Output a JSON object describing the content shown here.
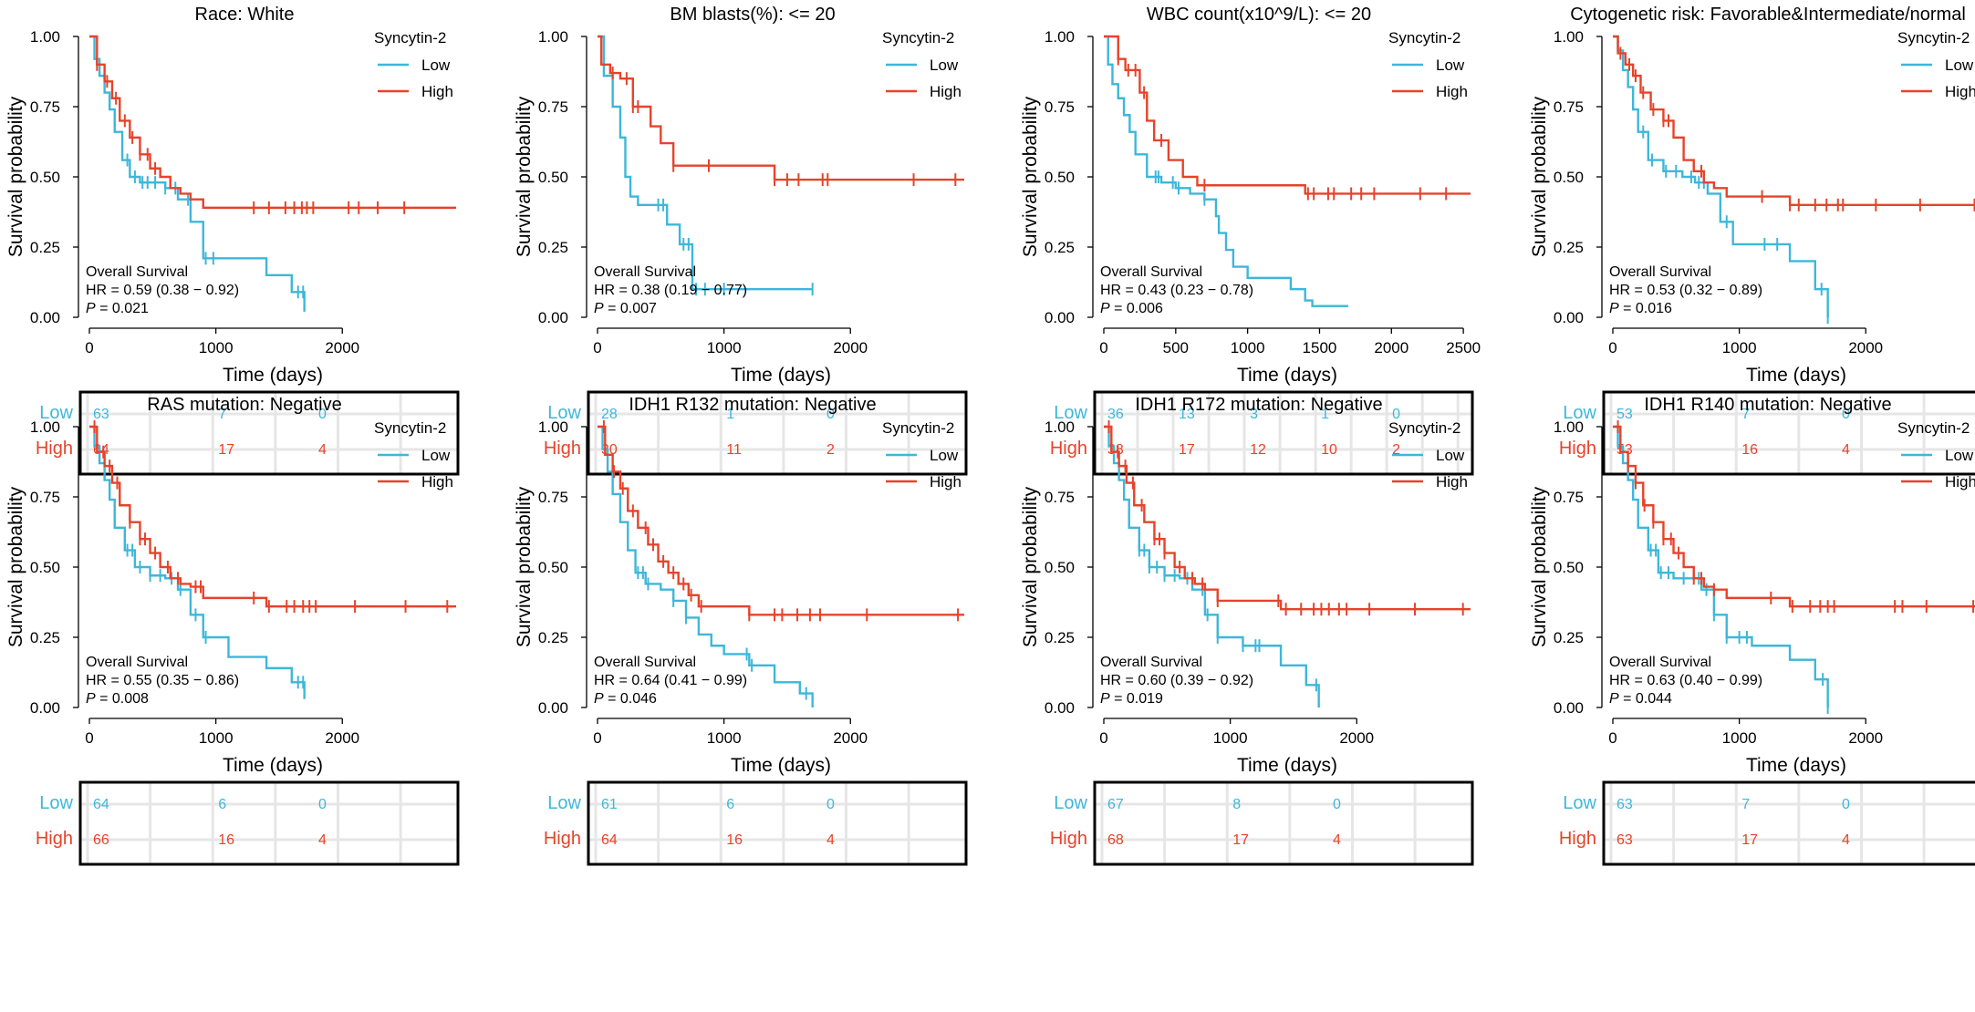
{
  "colors": {
    "low": "#3db7d9",
    "high": "#e6432b",
    "axis": "#000000",
    "grid": "#e6e6e6"
  },
  "common": {
    "ylabel": "Survival probability",
    "xlabel": "Time (days)",
    "legend_title": "Syncytin-2",
    "legend_low": "Low",
    "legend_high": "High",
    "stat_title": "Overall Survival",
    "yticks": [
      "0.00",
      "0.25",
      "0.50",
      "0.75",
      "1.00"
    ],
    "risk_low_label": "Low",
    "risk_high_label": "High"
  },
  "chart_data": [
    {
      "type": "line",
      "title": "Race: White",
      "xlim": [
        0,
        2900
      ],
      "ylim": [
        0,
        1
      ],
      "xticks": [
        0,
        1000,
        2000
      ],
      "hr": "HR = 0.59 (0.38 − 0.92)",
      "p": "P",
      "p_value": " = 0.021",
      "risk_times": [
        0,
        1000,
        1800
      ],
      "risk_low": [
        63,
        7,
        0
      ],
      "risk_high": [
        64,
        17,
        4
      ],
      "series": [
        {
          "name": "Low",
          "x": [
            0,
            40,
            80,
            120,
            160,
            200,
            260,
            320,
            400,
            500,
            600,
            700,
            800,
            900,
            1400,
            1600,
            1700
          ],
          "y": [
            1.0,
            0.92,
            0.86,
            0.8,
            0.74,
            0.66,
            0.56,
            0.5,
            0.48,
            0.48,
            0.46,
            0.42,
            0.34,
            0.21,
            0.15,
            0.09,
            0.02
          ],
          "censor": [
            300,
            360,
            420,
            460,
            520,
            600,
            680,
            780,
            920,
            980,
            1650,
            1690
          ]
        },
        {
          "name": "High",
          "x": [
            0,
            60,
            120,
            180,
            240,
            320,
            400,
            480,
            560,
            640,
            720,
            800,
            900
          ],
          "y": [
            1.0,
            0.9,
            0.84,
            0.78,
            0.7,
            0.64,
            0.58,
            0.53,
            0.5,
            0.46,
            0.44,
            0.42,
            0.39
          ],
          "censor": [
            60,
            140,
            210,
            280,
            340,
            400,
            460,
            520,
            1300,
            1420,
            1550,
            1620,
            1680,
            1720,
            1770,
            2050,
            2130,
            2280,
            2490
          ]
        }
      ]
    },
    {
      "type": "line",
      "title": "BM blasts(%): <= 20",
      "xlim": [
        0,
        2900
      ],
      "ylim": [
        0,
        1
      ],
      "xticks": [
        0,
        1000,
        2000
      ],
      "hr": "HR = 0.38 (0.19 − 0.77)",
      "p": "P",
      "p_value": " = 0.007",
      "risk_times": [
        0,
        1000,
        1800
      ],
      "risk_low": [
        28,
        1,
        0
      ],
      "risk_high": [
        30,
        11,
        2
      ],
      "series": [
        {
          "name": "Low",
          "x": [
            0,
            50,
            120,
            180,
            220,
            260,
            320,
            450,
            550,
            650,
            750,
            900,
            1000,
            1700
          ],
          "y": [
            1.0,
            0.86,
            0.75,
            0.64,
            0.5,
            0.43,
            0.4,
            0.4,
            0.33,
            0.26,
            0.1,
            0.1,
            0.1,
            0.1
          ],
          "censor": [
            480,
            520,
            680,
            720,
            780,
            850,
            1000,
            1700
          ]
        },
        {
          "name": "High",
          "x": [
            0,
            30,
            100,
            180,
            280,
            420,
            500,
            600,
            800,
            1400
          ],
          "y": [
            1.0,
            0.9,
            0.87,
            0.85,
            0.75,
            0.68,
            0.62,
            0.54,
            0.54,
            0.49
          ],
          "censor": [
            120,
            230,
            280,
            320,
            600,
            880,
            1400,
            1500,
            1590,
            1780,
            1820,
            2500,
            2830
          ]
        }
      ]
    },
    {
      "type": "line",
      "title": "WBC count(x10^9/L): <= 20",
      "xlim": [
        0,
        2550
      ],
      "ylim": [
        0,
        1
      ],
      "xticks": [
        0,
        500,
        1000,
        1500,
        2000,
        2500
      ],
      "hr": "HR = 0.43 (0.23 − 0.78)",
      "p": "P",
      "p_value": " = 0.006",
      "risk_times": [
        0,
        500,
        1000,
        1500,
        2000
      ],
      "risk_low": [
        36,
        13,
        3,
        1,
        0
      ],
      "risk_high": [
        38,
        17,
        12,
        10,
        2
      ],
      "series": [
        {
          "name": "Low",
          "x": [
            0,
            30,
            60,
            100,
            140,
            180,
            220,
            300,
            400,
            500,
            600,
            700,
            780,
            800,
            850,
            900,
            1000,
            1100,
            1300,
            1400,
            1450,
            1700
          ],
          "y": [
            1.0,
            0.9,
            0.83,
            0.78,
            0.72,
            0.66,
            0.58,
            0.5,
            0.48,
            0.46,
            0.44,
            0.42,
            0.36,
            0.3,
            0.24,
            0.18,
            0.14,
            0.14,
            0.1,
            0.06,
            0.04,
            0.04
          ],
          "censor": [
            360,
            380,
            480,
            520,
            700
          ]
        },
        {
          "name": "High",
          "x": [
            0,
            100,
            150,
            250,
            300,
            350,
            450,
            550,
            650,
            750,
            1400
          ],
          "y": [
            1.0,
            0.92,
            0.88,
            0.8,
            0.7,
            0.63,
            0.56,
            0.5,
            0.47,
            0.47,
            0.44
          ],
          "censor": [
            100,
            170,
            220,
            280,
            400,
            700,
            1420,
            1460,
            1560,
            1600,
            1720,
            1790,
            1880,
            2200,
            2380
          ]
        }
      ]
    },
    {
      "type": "line",
      "title": "Cytogenetic risk: Favorable&Intermediate/normal",
      "xlim": [
        0,
        2900
      ],
      "ylim": [
        0,
        1
      ],
      "xticks": [
        0,
        1000,
        2000
      ],
      "hr": "HR = 0.53 (0.32 − 0.89)",
      "p": "P",
      "p_value": " = 0.016",
      "risk_times": [
        0,
        1000,
        1800
      ],
      "risk_low": [
        53,
        7,
        0
      ],
      "risk_high": [
        53,
        16,
        4
      ],
      "series": [
        {
          "name": "Low",
          "x": [
            0,
            40,
            80,
            120,
            160,
            200,
            280,
            400,
            550,
            650,
            750,
            850,
            950,
            1400,
            1600,
            1700
          ],
          "y": [
            1.0,
            0.95,
            0.88,
            0.82,
            0.74,
            0.66,
            0.56,
            0.52,
            0.5,
            0.48,
            0.44,
            0.34,
            0.26,
            0.2,
            0.1,
            0.0
          ],
          "censor": [
            240,
            310,
            420,
            500,
            620,
            680,
            720,
            900,
            1200,
            1300,
            1650,
            1700
          ]
        },
        {
          "name": "High",
          "x": [
            0,
            40,
            100,
            160,
            220,
            300,
            400,
            480,
            560,
            640,
            720,
            800,
            900,
            1400
          ],
          "y": [
            1.0,
            0.94,
            0.9,
            0.86,
            0.8,
            0.74,
            0.7,
            0.64,
            0.56,
            0.52,
            0.48,
            0.46,
            0.43,
            0.4
          ],
          "censor": [
            60,
            130,
            180,
            240,
            320,
            400,
            440,
            700,
            1180,
            1400,
            1470,
            1600,
            1690,
            1780,
            1820,
            2080,
            2430,
            2860
          ]
        }
      ]
    },
    {
      "type": "line",
      "title": "RAS mutation: Negative",
      "xlim": [
        0,
        2900
      ],
      "ylim": [
        0,
        1
      ],
      "xticks": [
        0,
        1000,
        2000
      ],
      "hr": "HR = 0.55 (0.35 − 0.86)",
      "p": "P",
      "p_value": " = 0.008",
      "risk_times": [
        0,
        1000,
        1800
      ],
      "risk_low": [
        64,
        6,
        0
      ],
      "risk_high": [
        66,
        16,
        4
      ],
      "series": [
        {
          "name": "Low",
          "x": [
            0,
            40,
            80,
            120,
            160,
            200,
            280,
            360,
            480,
            600,
            700,
            800,
            900,
            1100,
            1400,
            1600,
            1700
          ],
          "y": [
            1.0,
            0.93,
            0.87,
            0.81,
            0.74,
            0.64,
            0.56,
            0.5,
            0.47,
            0.46,
            0.42,
            0.33,
            0.25,
            0.18,
            0.14,
            0.09,
            0.03
          ],
          "censor": [
            300,
            340,
            400,
            480,
            560,
            650,
            720,
            840,
            920,
            1650,
            1690
          ]
        },
        {
          "name": "High",
          "x": [
            0,
            60,
            120,
            180,
            240,
            320,
            400,
            480,
            560,
            640,
            720,
            800,
            900,
            1400
          ],
          "y": [
            1.0,
            0.91,
            0.86,
            0.8,
            0.72,
            0.66,
            0.6,
            0.55,
            0.5,
            0.46,
            0.44,
            0.43,
            0.39,
            0.36
          ],
          "censor": [
            40,
            110,
            160,
            220,
            320,
            400,
            440,
            520,
            620,
            700,
            840,
            880,
            1300,
            1420,
            1560,
            1620,
            1690,
            1740,
            1790,
            2100,
            2500,
            2830
          ]
        }
      ]
    },
    {
      "type": "line",
      "title": "IDH1 R132 mutation: Negative",
      "xlim": [
        0,
        2900
      ],
      "ylim": [
        0,
        1
      ],
      "xticks": [
        0,
        1000,
        2000
      ],
      "hr": "HR = 0.64 (0.41 − 0.99)",
      "p": "P",
      "p_value": " = 0.046",
      "risk_times": [
        0,
        1000,
        1800
      ],
      "risk_low": [
        61,
        6,
        0
      ],
      "risk_high": [
        64,
        16,
        4
      ],
      "series": [
        {
          "name": "Low",
          "x": [
            0,
            40,
            80,
            120,
            180,
            240,
            300,
            380,
            500,
            600,
            700,
            800,
            900,
            1000,
            1200,
            1400,
            1600,
            1700
          ],
          "y": [
            1.0,
            0.92,
            0.84,
            0.76,
            0.66,
            0.56,
            0.48,
            0.44,
            0.42,
            0.38,
            0.32,
            0.26,
            0.22,
            0.19,
            0.15,
            0.09,
            0.05,
            0.0
          ],
          "censor": [
            320,
            360,
            400,
            600,
            700,
            1180,
            1220,
            1650
          ]
        },
        {
          "name": "High",
          "x": [
            0,
            60,
            120,
            180,
            240,
            320,
            400,
            480,
            560,
            640,
            720,
            800,
            900,
            1200
          ],
          "y": [
            1.0,
            0.9,
            0.84,
            0.78,
            0.7,
            0.64,
            0.58,
            0.52,
            0.48,
            0.44,
            0.4,
            0.36,
            0.36,
            0.33
          ],
          "censor": [
            50,
            130,
            200,
            280,
            380,
            440,
            520,
            600,
            680,
            740,
            820,
            1200,
            1400,
            1460,
            1580,
            1680,
            1760,
            2130,
            2850
          ]
        }
      ]
    },
    {
      "type": "line",
      "title": "IDH1 R172 mutation: Negative",
      "xlim": [
        0,
        2900
      ],
      "ylim": [
        0,
        1
      ],
      "xticks": [
        0,
        1000,
        2000
      ],
      "hr": "HR = 0.60 (0.39 − 0.92)",
      "p": "P",
      "p_value": " = 0.019",
      "risk_times": [
        0,
        1000,
        1800
      ],
      "risk_low": [
        67,
        8,
        0
      ],
      "risk_high": [
        68,
        17,
        4
      ],
      "series": [
        {
          "name": "Low",
          "x": [
            0,
            40,
            80,
            120,
            160,
            200,
            280,
            360,
            480,
            600,
            700,
            800,
            900,
            1100,
            1400,
            1600,
            1700
          ],
          "y": [
            1.0,
            0.93,
            0.87,
            0.81,
            0.74,
            0.64,
            0.56,
            0.5,
            0.47,
            0.46,
            0.42,
            0.33,
            0.25,
            0.22,
            0.15,
            0.08,
            0.0
          ],
          "censor": [
            280,
            320,
            360,
            420,
            480,
            560,
            660,
            780,
            820,
            900,
            1100,
            1200,
            1230,
            1680
          ]
        },
        {
          "name": "High",
          "x": [
            0,
            60,
            120,
            180,
            240,
            320,
            400,
            480,
            560,
            640,
            720,
            800,
            900,
            1400
          ],
          "y": [
            1.0,
            0.91,
            0.86,
            0.8,
            0.72,
            0.66,
            0.6,
            0.55,
            0.5,
            0.46,
            0.44,
            0.42,
            0.38,
            0.35
          ],
          "censor": [
            40,
            110,
            170,
            230,
            300,
            400,
            440,
            480,
            600,
            700,
            780,
            900,
            1380,
            1440,
            1560,
            1660,
            1720,
            1780,
            1860,
            1920,
            2100,
            2460,
            2840
          ]
        }
      ]
    },
    {
      "type": "line",
      "title": "IDH1 R140 mutation: Negative",
      "xlim": [
        0,
        2900
      ],
      "ylim": [
        0,
        1
      ],
      "xticks": [
        0,
        1000,
        2000
      ],
      "hr": "HR = 0.63 (0.40 − 0.99)",
      "p": "P",
      "p_value": " = 0.044",
      "risk_times": [
        0,
        1000,
        1800
      ],
      "risk_low": [
        63,
        7,
        0
      ],
      "risk_high": [
        63,
        17,
        4
      ],
      "series": [
        {
          "name": "Low",
          "x": [
            0,
            40,
            80,
            120,
            160,
            200,
            280,
            360,
            480,
            600,
            700,
            800,
            900,
            1100,
            1400,
            1600,
            1700
          ],
          "y": [
            1.0,
            0.93,
            0.87,
            0.81,
            0.74,
            0.64,
            0.56,
            0.48,
            0.46,
            0.46,
            0.42,
            0.33,
            0.25,
            0.22,
            0.17,
            0.1,
            0.0
          ],
          "censor": [
            300,
            340,
            380,
            440,
            560,
            680,
            740,
            800,
            900,
            1000,
            1060,
            1660,
            1700
          ]
        },
        {
          "name": "High",
          "x": [
            0,
            60,
            120,
            180,
            240,
            320,
            400,
            480,
            560,
            640,
            720,
            800,
            900,
            1400
          ],
          "y": [
            1.0,
            0.91,
            0.86,
            0.8,
            0.72,
            0.66,
            0.6,
            0.55,
            0.5,
            0.46,
            0.43,
            0.42,
            0.39,
            0.36
          ],
          "censor": [
            40,
            120,
            180,
            250,
            320,
            400,
            460,
            520,
            640,
            700,
            800,
            1250,
            1420,
            1560,
            1640,
            1700,
            1750,
            2230,
            2290,
            2480,
            2850
          ]
        }
      ]
    }
  ]
}
